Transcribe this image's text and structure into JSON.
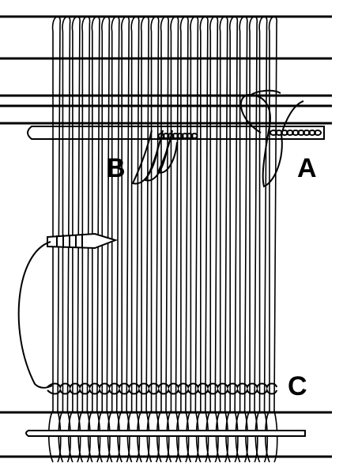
{
  "diagram": {
    "labels": {
      "a": "A",
      "b": "B",
      "c": "C"
    },
    "colors": {
      "ink": "#000000",
      "paper": "#ffffff"
    }
  }
}
